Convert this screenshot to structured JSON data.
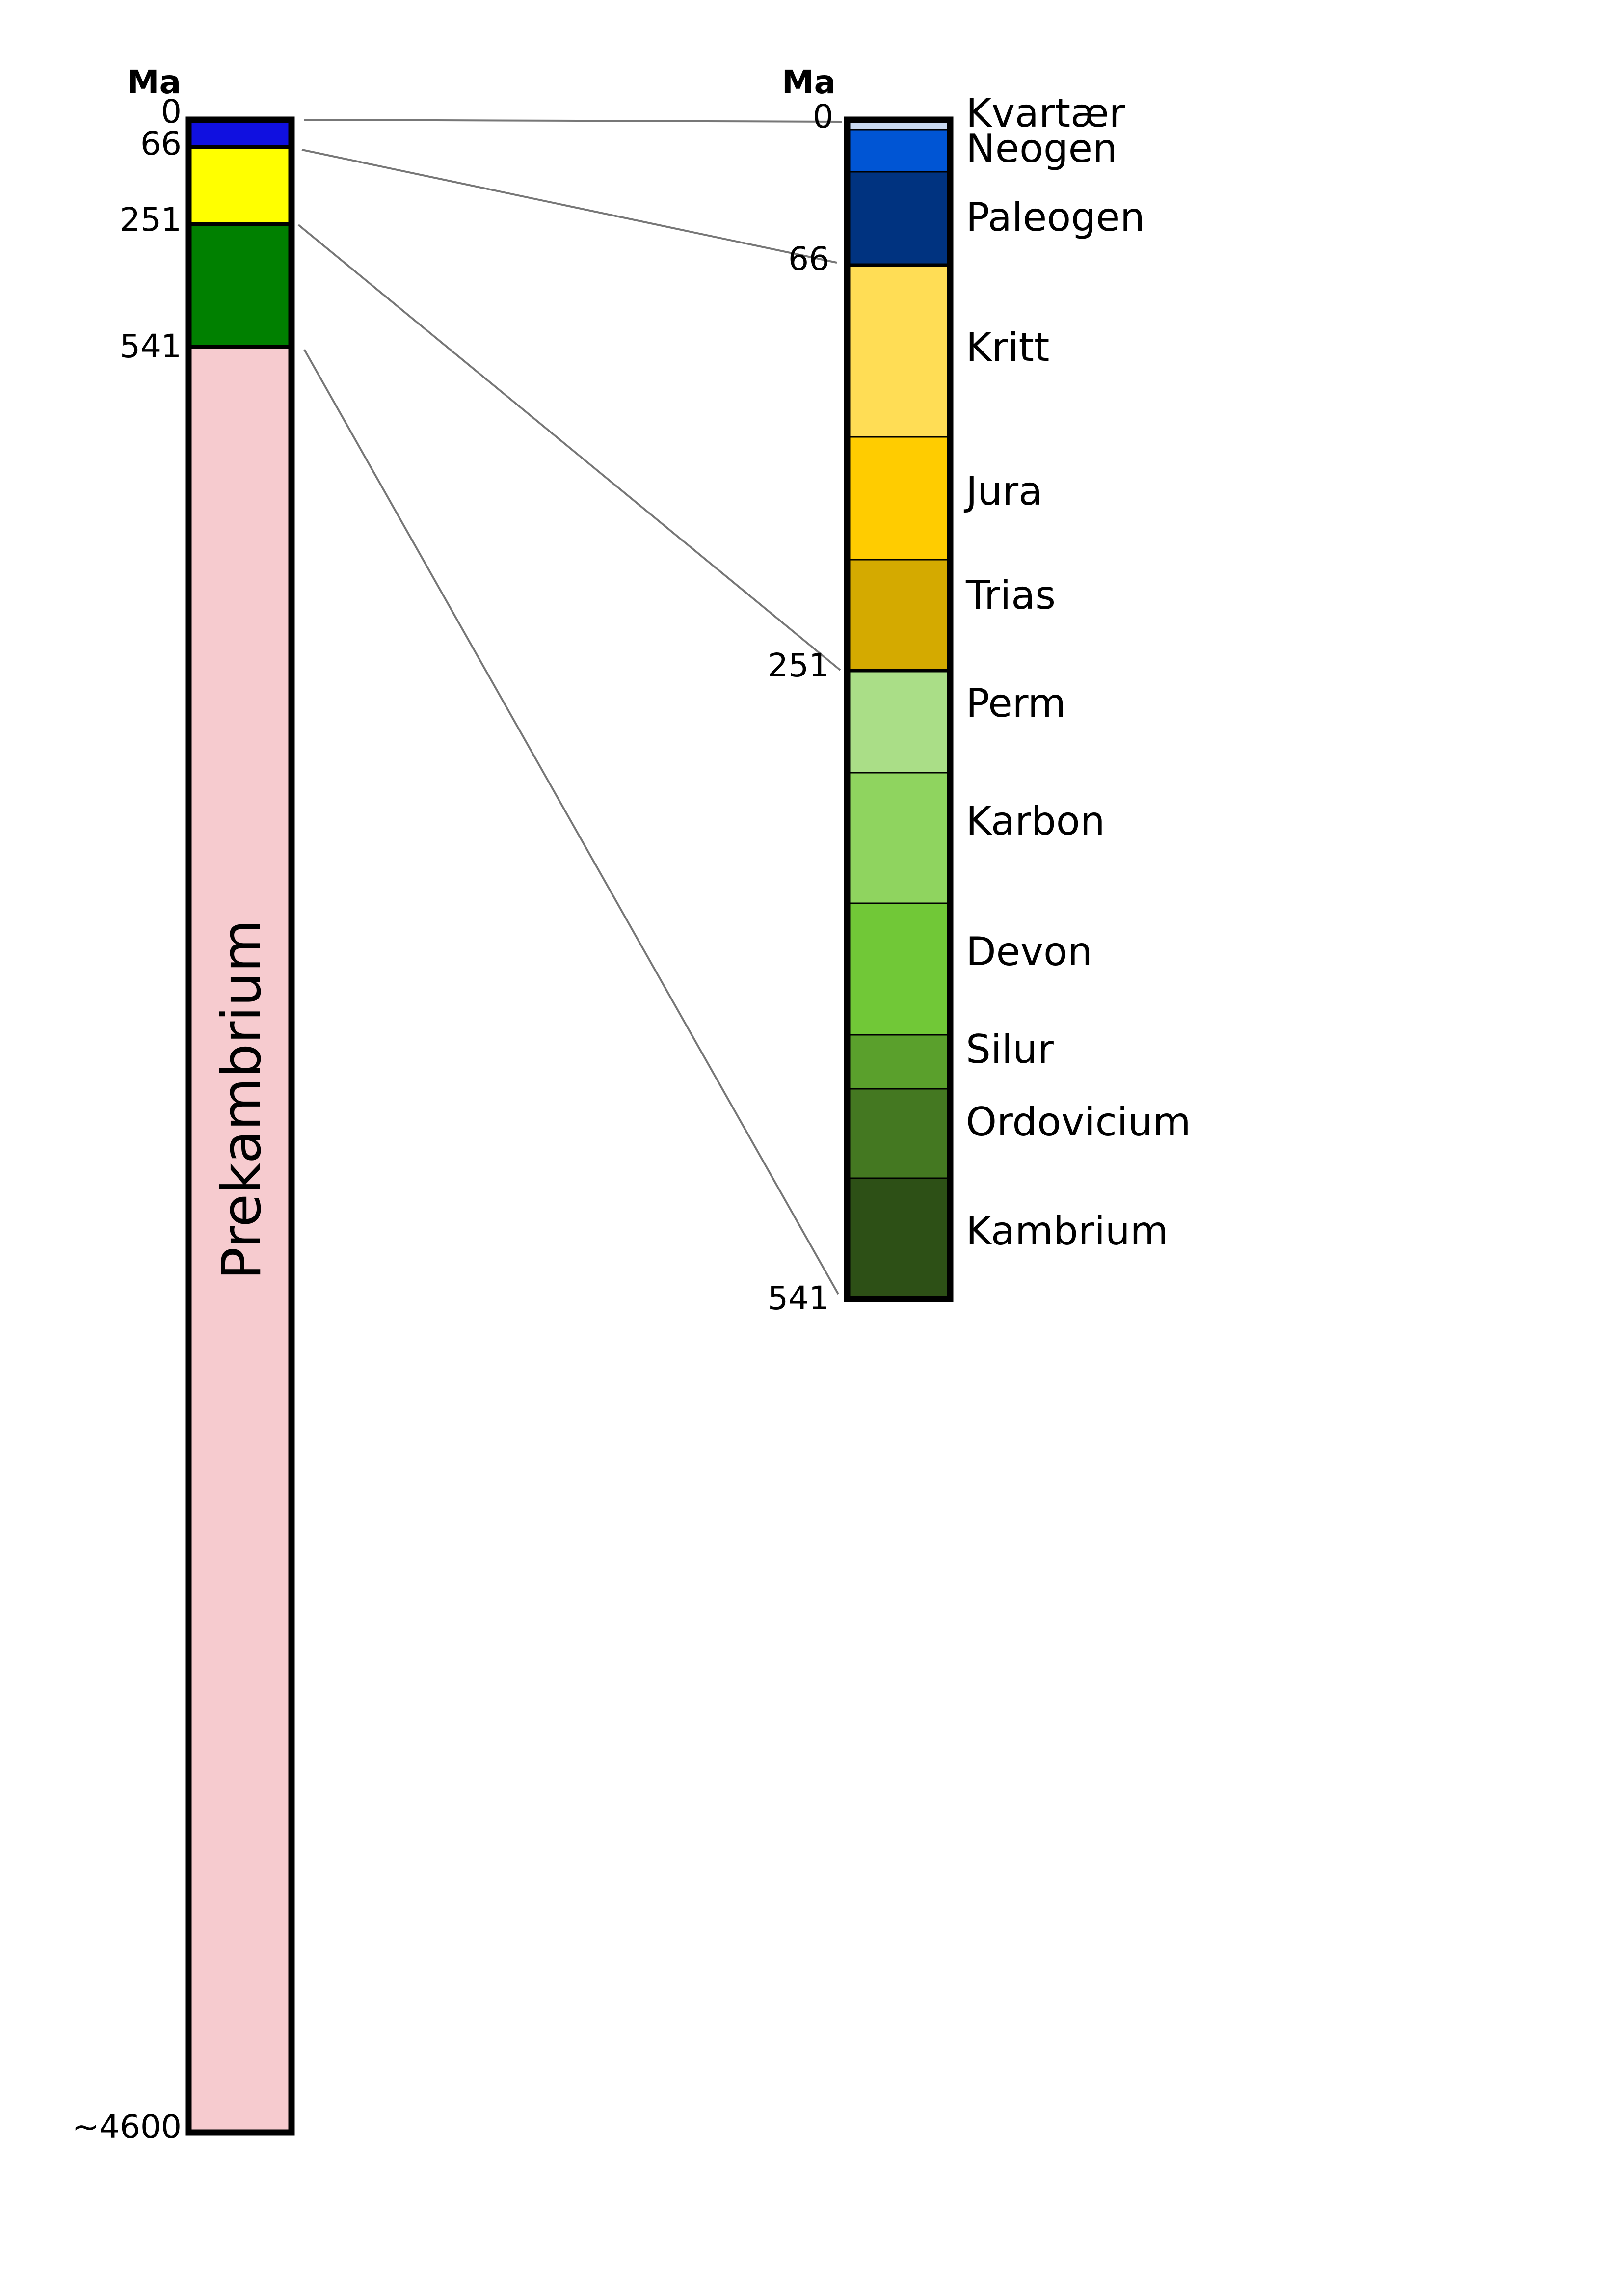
{
  "left_column": {
    "unit_label": "Ma",
    "ticks": [
      "0",
      "66",
      "251",
      "541",
      "~4600"
    ],
    "segments": [
      {
        "from": 0,
        "to": 66,
        "color": "#1010e0"
      },
      {
        "from": 66,
        "to": 251,
        "color": "#ffff00"
      },
      {
        "from": 251,
        "to": 541,
        "color": "#008000"
      },
      {
        "from": 541,
        "to": 4600,
        "color": "#f6cbcf",
        "label": "Prekambrium"
      }
    ]
  },
  "right_column": {
    "unit_label": "Ma",
    "ticks": [
      "0",
      "66",
      "251",
      "541"
    ],
    "periods": [
      {
        "name": "Kvartær",
        "from": 0,
        "to": 2.6,
        "color": "#c8d8f0"
      },
      {
        "name": "Neogen",
        "from": 2.6,
        "to": 23,
        "color": "#0055d4"
      },
      {
        "name": "Paleogen",
        "from": 23,
        "to": 66,
        "color": "#003380"
      },
      {
        "name": "Kritt",
        "from": 66,
        "to": 145,
        "color": "#ffdd55"
      },
      {
        "name": "Jura",
        "from": 145,
        "to": 201,
        "color": "#ffcc00"
      },
      {
        "name": "Trias",
        "from": 201,
        "to": 251,
        "color": "#d4aa00"
      },
      {
        "name": "Perm",
        "from": 251,
        "to": 298,
        "color": "#aade87"
      },
      {
        "name": "Karbon",
        "from": 298,
        "to": 358,
        "color": "#8fd45f"
      },
      {
        "name": "Devon",
        "from": 358,
        "to": 419,
        "color": "#71c837"
      },
      {
        "name": "Silur",
        "from": 419,
        "to": 443,
        "color": "#5aa02c"
      },
      {
        "name": "Ordovicium",
        "from": 443,
        "to": 485,
        "color": "#447821"
      },
      {
        "name": "Kambrium",
        "from": 485,
        "to": 541,
        "color": "#2d5016"
      }
    ]
  }
}
